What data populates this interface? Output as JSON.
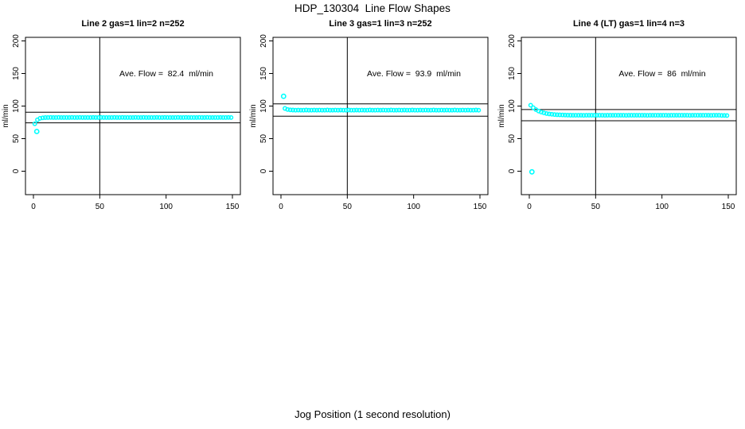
{
  "figure": {
    "title": "HDP_130304  Line Flow Shapes",
    "xlabel": "Jog Position (1 second resolution)",
    "background_color": "#ffffff",
    "axis_color": "#000000",
    "point_color": "#00ffff"
  },
  "chart_data": [
    {
      "type": "scatter",
      "title": "Line 2 gas=1 lin=2 n=252",
      "ylabel": "ml/min",
      "annotation": "Ave. Flow =  82.4  ml/min",
      "ave_flow_ml_min": 82.4,
      "n_points": 252,
      "x_ticks": [
        0,
        50,
        100,
        150
      ],
      "y_ticks": [
        0,
        50,
        100,
        150,
        200
      ],
      "xlim": [
        -6,
        156
      ],
      "ylim": [
        -36,
        206
      ],
      "grid": false,
      "legend": "none",
      "vline_x": 50,
      "hlines": [
        90.6,
        74.2
      ],
      "series": {
        "name": "line2-flow",
        "x_start": 1,
        "x_step": 2,
        "values": [
          72.8,
          78.9,
          81.2,
          82.0,
          82.3,
          82.5,
          82.6,
          82.4,
          82.5,
          82.6,
          82.5,
          82.4,
          82.5,
          82.5,
          82.6,
          82.4,
          82.5,
          82.6,
          82.5,
          82.4,
          82.5,
          82.5,
          82.6,
          82.4,
          82.5,
          82.6,
          82.5,
          82.4,
          82.5,
          82.5,
          82.6,
          82.4,
          82.5,
          82.6,
          82.5,
          82.4,
          82.5,
          82.5,
          82.6,
          82.4,
          82.5,
          82.6,
          82.5,
          82.4,
          82.5,
          82.5,
          82.6,
          82.4,
          82.5,
          82.6,
          82.5,
          82.4,
          82.5,
          82.5,
          82.6,
          82.4,
          82.5,
          82.6,
          82.5,
          82.4,
          82.5,
          82.5,
          82.6,
          82.4,
          82.5,
          82.6,
          82.5,
          82.4,
          82.5,
          82.5,
          82.6,
          82.4,
          82.5,
          82.6,
          82.5
        ]
      },
      "outliers": [
        [
          2.5,
          61
        ]
      ]
    },
    {
      "type": "scatter",
      "title": "Line 3 gas=1 lin=3 n=252",
      "ylabel": "ml/min",
      "annotation": "Ave. Flow =  93.9  ml/min",
      "ave_flow_ml_min": 93.9,
      "n_points": 252,
      "x_ticks": [
        0,
        50,
        100,
        150
      ],
      "y_ticks": [
        0,
        50,
        100,
        150,
        200
      ],
      "xlim": [
        -6,
        156
      ],
      "ylim": [
        -36,
        206
      ],
      "grid": false,
      "legend": "none",
      "vline_x": 50,
      "hlines": [
        103.3,
        84.5
      ],
      "series": {
        "name": "line3-flow",
        "x_start": 3,
        "x_step": 2,
        "values": [
          96.3,
          94.8,
          94.2,
          93.9,
          93.7,
          93.8,
          93.6,
          93.7,
          93.9,
          93.7,
          93.6,
          93.8,
          93.7,
          93.8,
          93.6,
          93.7,
          93.9,
          93.7,
          93.6,
          93.8,
          93.7,
          93.8,
          93.6,
          93.7,
          93.9,
          93.7,
          93.6,
          93.8,
          93.7,
          93.8,
          93.6,
          93.7,
          93.9,
          93.7,
          93.6,
          93.8,
          93.7,
          93.8,
          93.6,
          93.7,
          93.9,
          93.7,
          93.6,
          93.8,
          93.7,
          93.8,
          93.6,
          93.7,
          93.9,
          93.7,
          93.6,
          93.8,
          93.7,
          93.8,
          93.6,
          93.7,
          93.9,
          93.7,
          93.6,
          93.8,
          93.7,
          93.8,
          93.6,
          93.7,
          93.9,
          93.7,
          93.6,
          93.8,
          93.7,
          93.8,
          93.6,
          93.7,
          93.9,
          93.7
        ]
      },
      "outliers": [
        [
          2,
          115
        ]
      ]
    },
    {
      "type": "scatter",
      "title": "Line 4 (LT) gas=1 lin=4 n=3",
      "ylabel": "ml/min",
      "annotation": "Ave. Flow =  86  ml/min",
      "ave_flow_ml_min": 86,
      "n_points": 3,
      "x_ticks": [
        0,
        50,
        100,
        150
      ],
      "y_ticks": [
        0,
        50,
        100,
        150,
        200
      ],
      "xlim": [
        -6,
        156
      ],
      "ylim": [
        -36,
        206
      ],
      "grid": false,
      "legend": "none",
      "vline_x": 50,
      "hlines": [
        94.6,
        77.4
      ],
      "series": {
        "name": "line4-flow",
        "x_start": 1,
        "x_step": 2,
        "values": [
          101.4,
          97.5,
          94.6,
          92.3,
          90.7,
          89.5,
          88.5,
          87.9,
          87.4,
          87.0,
          86.7,
          86.5,
          86.3,
          86.2,
          86.1,
          86.0,
          85.9,
          85.8,
          85.9,
          85.8,
          85.7,
          85.9,
          85.8,
          85.8,
          85.9,
          85.8,
          85.9,
          85.8,
          85.7,
          85.9,
          85.8,
          85.8,
          85.9,
          85.8,
          85.9,
          85.8,
          85.7,
          85.9,
          85.8,
          85.8,
          85.9,
          85.8,
          85.9,
          85.8,
          85.7,
          85.9,
          85.8,
          85.8,
          85.9,
          85.8,
          85.9,
          85.8,
          85.7,
          85.9,
          85.8,
          85.8,
          85.9,
          85.8,
          85.9,
          85.8,
          85.7,
          85.9,
          85.8,
          85.8,
          85.9,
          85.8,
          85.9,
          85.8,
          85.7,
          85.9,
          85.8,
          85.8,
          85.6,
          85.6,
          85.5
        ]
      },
      "outliers": [
        [
          2,
          -1
        ]
      ]
    }
  ]
}
